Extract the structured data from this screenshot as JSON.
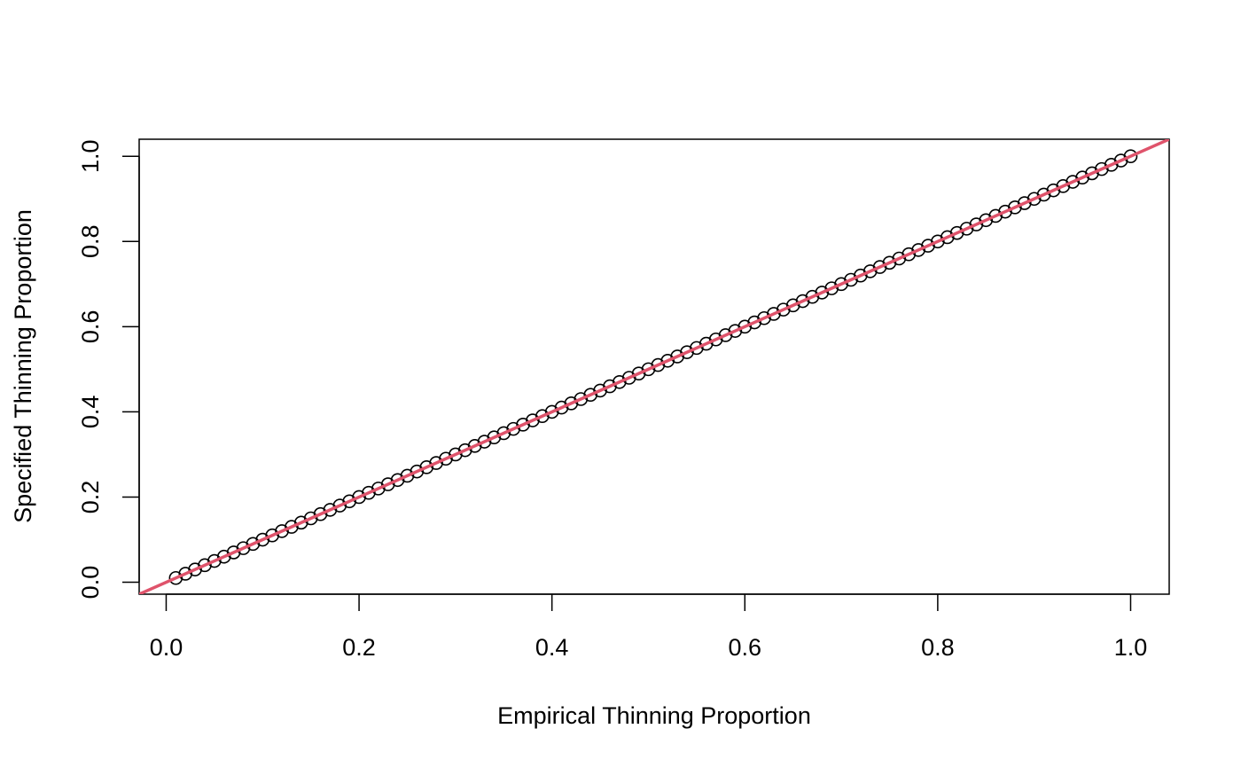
{
  "chart_data": {
    "type": "scatter",
    "title": "",
    "xlabel": "Empirical Thinning Proportion",
    "ylabel": "Specified Thinning Proportion",
    "xlim": [
      -0.028,
      1.04
    ],
    "ylim": [
      -0.028,
      1.04
    ],
    "x_ticks": [
      "0.0",
      "0.2",
      "0.4",
      "0.6",
      "0.8",
      "1.0"
    ],
    "y_ticks": [
      "0.0",
      "0.2",
      "0.4",
      "0.6",
      "0.8",
      "1.0"
    ],
    "grid": false,
    "legend": "none",
    "point_style": "open-circle",
    "point_color": "#000000",
    "reference_line": {
      "intercept": 0,
      "slope": 1,
      "color": "#DF536B"
    },
    "x": [
      0.01,
      0.02,
      0.03,
      0.04,
      0.05,
      0.06,
      0.07,
      0.08,
      0.09,
      0.1,
      0.11,
      0.12,
      0.13,
      0.14,
      0.15,
      0.16,
      0.17,
      0.18,
      0.19,
      0.2,
      0.21,
      0.22,
      0.23,
      0.24,
      0.25,
      0.26,
      0.27,
      0.28,
      0.29,
      0.3,
      0.31,
      0.32,
      0.33,
      0.34,
      0.35,
      0.36,
      0.37,
      0.38,
      0.39,
      0.4,
      0.41,
      0.42,
      0.43,
      0.44,
      0.45,
      0.46,
      0.47,
      0.48,
      0.49,
      0.5,
      0.51,
      0.52,
      0.53,
      0.54,
      0.55,
      0.56,
      0.57,
      0.58,
      0.59,
      0.6,
      0.61,
      0.62,
      0.63,
      0.64,
      0.65,
      0.66,
      0.67,
      0.68,
      0.69,
      0.7,
      0.71,
      0.72,
      0.73,
      0.74,
      0.75,
      0.76,
      0.77,
      0.78,
      0.79,
      0.8,
      0.81,
      0.82,
      0.83,
      0.84,
      0.85,
      0.86,
      0.87,
      0.88,
      0.89,
      0.9,
      0.91,
      0.92,
      0.93,
      0.94,
      0.95,
      0.96,
      0.97,
      0.98,
      0.99,
      1.0
    ],
    "y": [
      0.01,
      0.02,
      0.03,
      0.04,
      0.05,
      0.06,
      0.07,
      0.08,
      0.09,
      0.1,
      0.11,
      0.12,
      0.13,
      0.14,
      0.15,
      0.16,
      0.17,
      0.18,
      0.19,
      0.2,
      0.21,
      0.22,
      0.23,
      0.24,
      0.25,
      0.26,
      0.27,
      0.28,
      0.29,
      0.3,
      0.31,
      0.32,
      0.33,
      0.34,
      0.35,
      0.36,
      0.37,
      0.38,
      0.39,
      0.4,
      0.41,
      0.42,
      0.43,
      0.44,
      0.45,
      0.46,
      0.47,
      0.48,
      0.49,
      0.5,
      0.51,
      0.52,
      0.53,
      0.54,
      0.55,
      0.56,
      0.57,
      0.58,
      0.59,
      0.6,
      0.61,
      0.62,
      0.63,
      0.64,
      0.65,
      0.66,
      0.67,
      0.68,
      0.69,
      0.7,
      0.71,
      0.72,
      0.73,
      0.74,
      0.75,
      0.76,
      0.77,
      0.78,
      0.79,
      0.8,
      0.81,
      0.82,
      0.83,
      0.84,
      0.85,
      0.86,
      0.87,
      0.88,
      0.89,
      0.9,
      0.91,
      0.92,
      0.93,
      0.94,
      0.95,
      0.96,
      0.97,
      0.98,
      0.99,
      1.0
    ]
  }
}
